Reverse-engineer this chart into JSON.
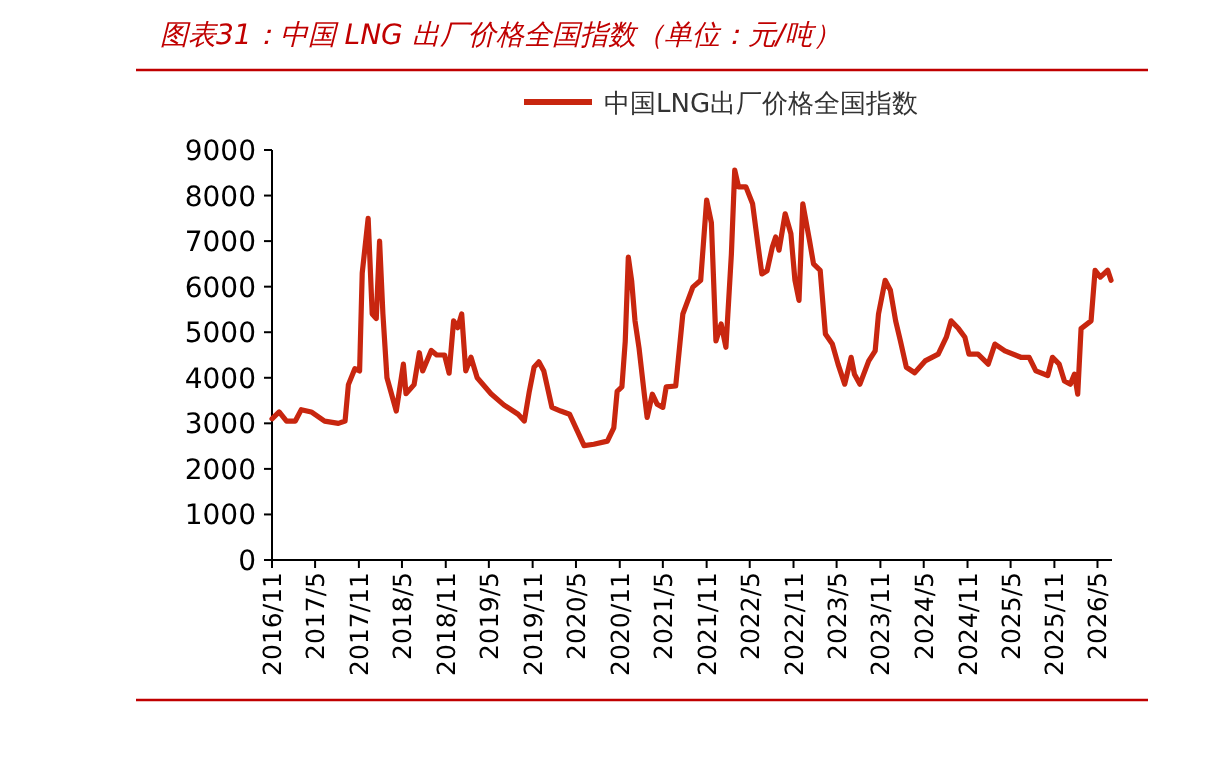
{
  "chart_data": {
    "type": "line",
    "title": "图表31：中国 LNG 出厂价格全国指数（单位：元/吨）",
    "x": [
      "2016-11-01",
      "2016-12-01",
      "2017-01-01",
      "2017-02-07",
      "2017-03-04",
      "2017-04-15",
      "2017-06-10",
      "2017-08-07",
      "2017-09-04",
      "2017-09-18",
      "2017-10-15",
      "2017-11-04",
      "2017-11-15",
      "2017-12-10",
      "2017-12-27",
      "2018-01-13",
      "2018-01-27",
      "2018-02-10",
      "2018-02-27",
      "2018-04-07",
      "2018-05-07",
      "2018-05-18",
      "2018-06-21",
      "2018-07-13",
      "2018-07-27",
      "2018-09-01",
      "2018-09-24",
      "2018-10-27",
      "2018-11-15",
      "2018-12-04",
      "2018-12-21",
      "2019-01-07",
      "2019-01-24",
      "2019-02-15",
      "2019-03-13",
      "2019-05-10",
      "2019-07-04",
      "2019-09-01",
      "2019-09-27",
      "2019-10-18",
      "2019-11-07",
      "2019-11-27",
      "2019-12-18",
      "2020-01-21",
      "2020-02-27",
      "2020-04-04",
      "2020-05-07",
      "2020-06-04",
      "2020-07-15",
      "2020-09-10",
      "2020-10-07",
      "2020-10-21",
      "2020-11-10",
      "2020-11-24",
      "2020-12-07",
      "2020-12-21",
      "2021-01-04",
      "2021-01-21",
      "2021-02-13",
      "2021-02-24",
      "2021-03-18",
      "2021-04-07",
      "2021-05-01",
      "2021-05-15",
      "2021-06-24",
      "2021-07-24",
      "2021-09-04",
      "2021-10-07",
      "2021-11-01",
      "2021-11-21",
      "2021-12-10",
      "2022-01-01",
      "2022-01-21",
      "2022-02-13",
      "2022-02-27",
      "2022-03-15",
      "2022-04-15",
      "2022-05-13",
      "2022-06-04",
      "2022-06-21",
      "2022-07-13",
      "2022-08-04",
      "2022-08-18",
      "2022-09-01",
      "2022-09-27",
      "2022-10-21",
      "2022-11-07",
      "2022-11-24",
      "2022-12-10",
      "2023-01-07",
      "2023-01-24",
      "2023-02-21",
      "2023-03-15",
      "2023-04-13",
      "2023-05-07",
      "2023-06-04",
      "2023-07-01",
      "2023-07-15",
      "2023-08-07",
      "2023-09-13",
      "2023-10-10",
      "2023-10-24",
      "2023-11-21",
      "2023-12-13",
      "2024-01-04",
      "2024-01-24",
      "2024-02-18",
      "2024-03-24",
      "2024-05-07",
      "2024-07-01",
      "2024-08-04",
      "2024-08-24",
      "2024-09-24",
      "2024-10-21",
      "2024-11-07",
      "2024-12-15",
      "2025-01-27",
      "2025-02-24",
      "2025-04-07",
      "2025-06-13",
      "2025-07-18",
      "2025-08-15",
      "2025-10-04",
      "2025-10-24",
      "2025-11-21",
      "2025-12-13",
      "2026-01-07",
      "2026-01-24",
      "2026-02-07",
      "2026-02-21",
      "2026-04-04",
      "2026-04-21",
      "2026-05-13",
      "2026-06-13",
      "2026-06-27"
    ],
    "series": [
      {
        "name": "中国LNG出厂价格全国指数",
        "color": "#c8260f",
        "values": [
          3100,
          3250,
          3050,
          3050,
          3300,
          3250,
          3050,
          3000,
          3050,
          3850,
          4200,
          4150,
          6300,
          7500,
          5400,
          5300,
          7000,
          5400,
          4000,
          3270,
          4300,
          3650,
          3850,
          4550,
          4150,
          4600,
          4500,
          4500,
          4100,
          5250,
          5100,
          5400,
          4150,
          4450,
          4000,
          3650,
          3400,
          3200,
          3050,
          3700,
          4230,
          4350,
          4150,
          3350,
          3270,
          3200,
          2830,
          2510,
          2540,
          2610,
          2900,
          3700,
          3800,
          4800,
          6650,
          6130,
          5250,
          4650,
          3600,
          3130,
          3640,
          3420,
          3350,
          3800,
          3820,
          5400,
          5990,
          6140,
          7900,
          7400,
          4810,
          5180,
          4670,
          6720,
          8560,
          8190,
          8190,
          7820,
          6940,
          6280,
          6350,
          6870,
          7090,
          6800,
          7600,
          7160,
          6140,
          5700,
          7820,
          7020,
          6500,
          6360,
          4960,
          4740,
          4300,
          3860,
          4450,
          4080,
          3860,
          4370,
          4590,
          5400,
          6140,
          5920,
          5250,
          4810,
          4230,
          4110,
          4370,
          4520,
          4890,
          5250,
          5080,
          4890,
          4520,
          4520,
          4300,
          4740,
          4590,
          4450,
          4450,
          4150,
          4050,
          4450,
          4300,
          3930,
          3860,
          4080,
          3640,
          5080,
          5250,
          6360,
          6210,
          6360,
          6140
        ]
      }
    ],
    "xlim": [
      "2016-11-01",
      "2026-07-01"
    ],
    "xticks": [
      {
        "value": "2016-11",
        "label": "2016/11"
      },
      {
        "value": "2017-05",
        "label": "2017/5"
      },
      {
        "value": "2017-11",
        "label": "2017/11"
      },
      {
        "value": "2018-05",
        "label": "2018/5"
      },
      {
        "value": "2018-11",
        "label": "2018/11"
      },
      {
        "value": "2019-05",
        "label": "2019/5"
      },
      {
        "value": "2019-11",
        "label": "2019/11"
      },
      {
        "value": "2020-05",
        "label": "2020/5"
      },
      {
        "value": "2020-11",
        "label": "2020/11"
      },
      {
        "value": "2021-05",
        "label": "2021/5"
      },
      {
        "value": "2021-11",
        "label": "2021/11"
      },
      {
        "value": "2022-05",
        "label": "2022/5"
      },
      {
        "value": "2022-11",
        "label": "2022/11"
      },
      {
        "value": "2023-05",
        "label": "2023/5"
      },
      {
        "value": "2023-11",
        "label": "2023/11"
      },
      {
        "value": "2024-05",
        "label": "2024/5"
      },
      {
        "value": "2024-11",
        "label": "2024/11"
      },
      {
        "value": "2025-05",
        "label": "2025/5"
      },
      {
        "value": "2025-11",
        "label": "2025/11"
      },
      {
        "value": "2026-05",
        "label": "2026/5"
      }
    ],
    "ylim": [
      0,
      9000
    ],
    "yticks": [
      0,
      1000,
      2000,
      3000,
      4000,
      5000,
      6000,
      7000,
      8000,
      9000
    ],
    "legend": "top",
    "line_style": "solid"
  }
}
